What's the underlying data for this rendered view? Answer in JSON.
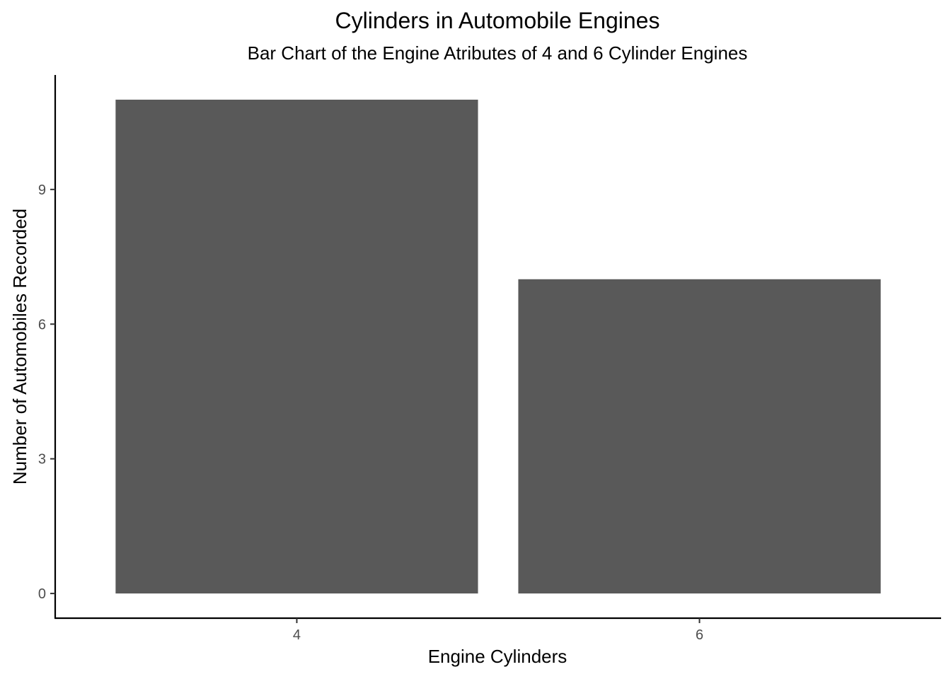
{
  "chart_data": {
    "type": "bar",
    "title": "Cylinders in Automobile Engines",
    "subtitle": "Bar Chart of the Engine Atributes of 4 and 6 Cylinder Engines",
    "xlabel": "Engine Cylinders",
    "ylabel": "Number of Automobiles Recorded",
    "categories": [
      "4",
      "6"
    ],
    "values": [
      11,
      7
    ],
    "yticks": [
      0,
      3,
      6,
      9
    ],
    "ytick_labels": [
      "0",
      "3",
      "6",
      "9"
    ],
    "ylim": [
      -0.55,
      11.55
    ],
    "grid": false,
    "legend": "none",
    "bar_color": "#595959"
  }
}
